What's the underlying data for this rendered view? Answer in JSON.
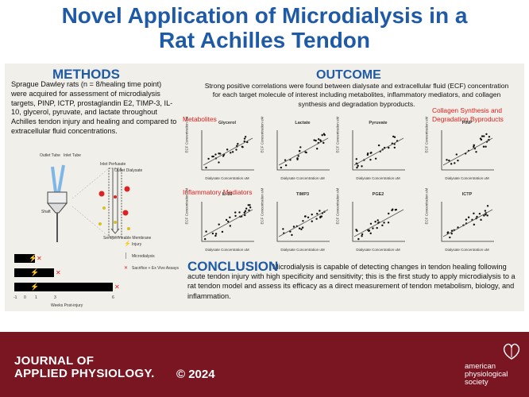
{
  "title": {
    "line1": "Novel Application of Microdialysis in a",
    "line2": "Rat Achilles Tendon"
  },
  "methods": {
    "heading": "METHODS",
    "text": "Sprague Dawley rats (n = 8/healing time point) were acquired for assessment of microdialysis targets, PINP, ICTP, prostaglandin E2, TIMP-3, IL-10, glycerol, pyruvate, and lactate throughout Achilles tendon injury and healing and compared to extracellular fluid concentrations.",
    "diagram": {
      "outlet_tube": "Outlet Tube",
      "inlet_tube": "Inlet Tube",
      "inlet_perfusate": "Inlet Perfusate",
      "outlet_dialysate": "Outlet Dialysate",
      "shaft": "Shaft",
      "membrane": "Semipermeable Membrane"
    },
    "timeline": {
      "legend": [
        "Injury",
        "Microdialysis",
        "Sacrifice + Ex Vivo Assays"
      ],
      "ticks": [
        "-1",
        "0",
        "1",
        "3",
        "6"
      ],
      "xlabel": "Weeks Post-injury"
    }
  },
  "outcome": {
    "heading": "OUTCOME",
    "text": "Strong positive correlations were found between dialysate and extracellular fluid (ECF) concentration for each target molecule of interest including metabolites, inflammatory mediators, and collagen synthesis and degradation byproducts.",
    "group_metabolites": "Metabolites",
    "group_inflammatory": "Inflammatory Mediators",
    "group_collagen_1": "Collagen Synthesis and",
    "group_collagen_2": "Degradation Byproducts",
    "xaxis": "Dialysate Concentration uM",
    "yaxis": "ECF Concentration uM",
    "plots": [
      {
        "title": "Glycerol"
      },
      {
        "title": "Lactate"
      },
      {
        "title": "Pyruvate"
      },
      {
        "title": "PINP"
      },
      {
        "title": "IL-10"
      },
      {
        "title": "TIMP3"
      },
      {
        "title": "PGE2"
      },
      {
        "title": "ICTP"
      }
    ]
  },
  "conclusion": {
    "heading": "CONCLUSION",
    "text": "Microdialysis is capable of detecting changes in tendon healing following acute tendon injury with high specificity and sensitivity; this is the first study to apply microdialysis to a rat tendon model and assess its efficacy as a direct measurement of tendon metabolism, biology, and inflammation."
  },
  "footer": {
    "journal_line1": "JOURNAL OF",
    "journal_line2": "APPLIED PHYSIOLOGY.",
    "year": "© 2024",
    "society_line1": "american",
    "society_line2": "physiological",
    "society_line3": "society"
  },
  "colors": {
    "title_blue": "#1f5aa6",
    "footer": "#7a1522",
    "accent_red": "#e02020"
  }
}
